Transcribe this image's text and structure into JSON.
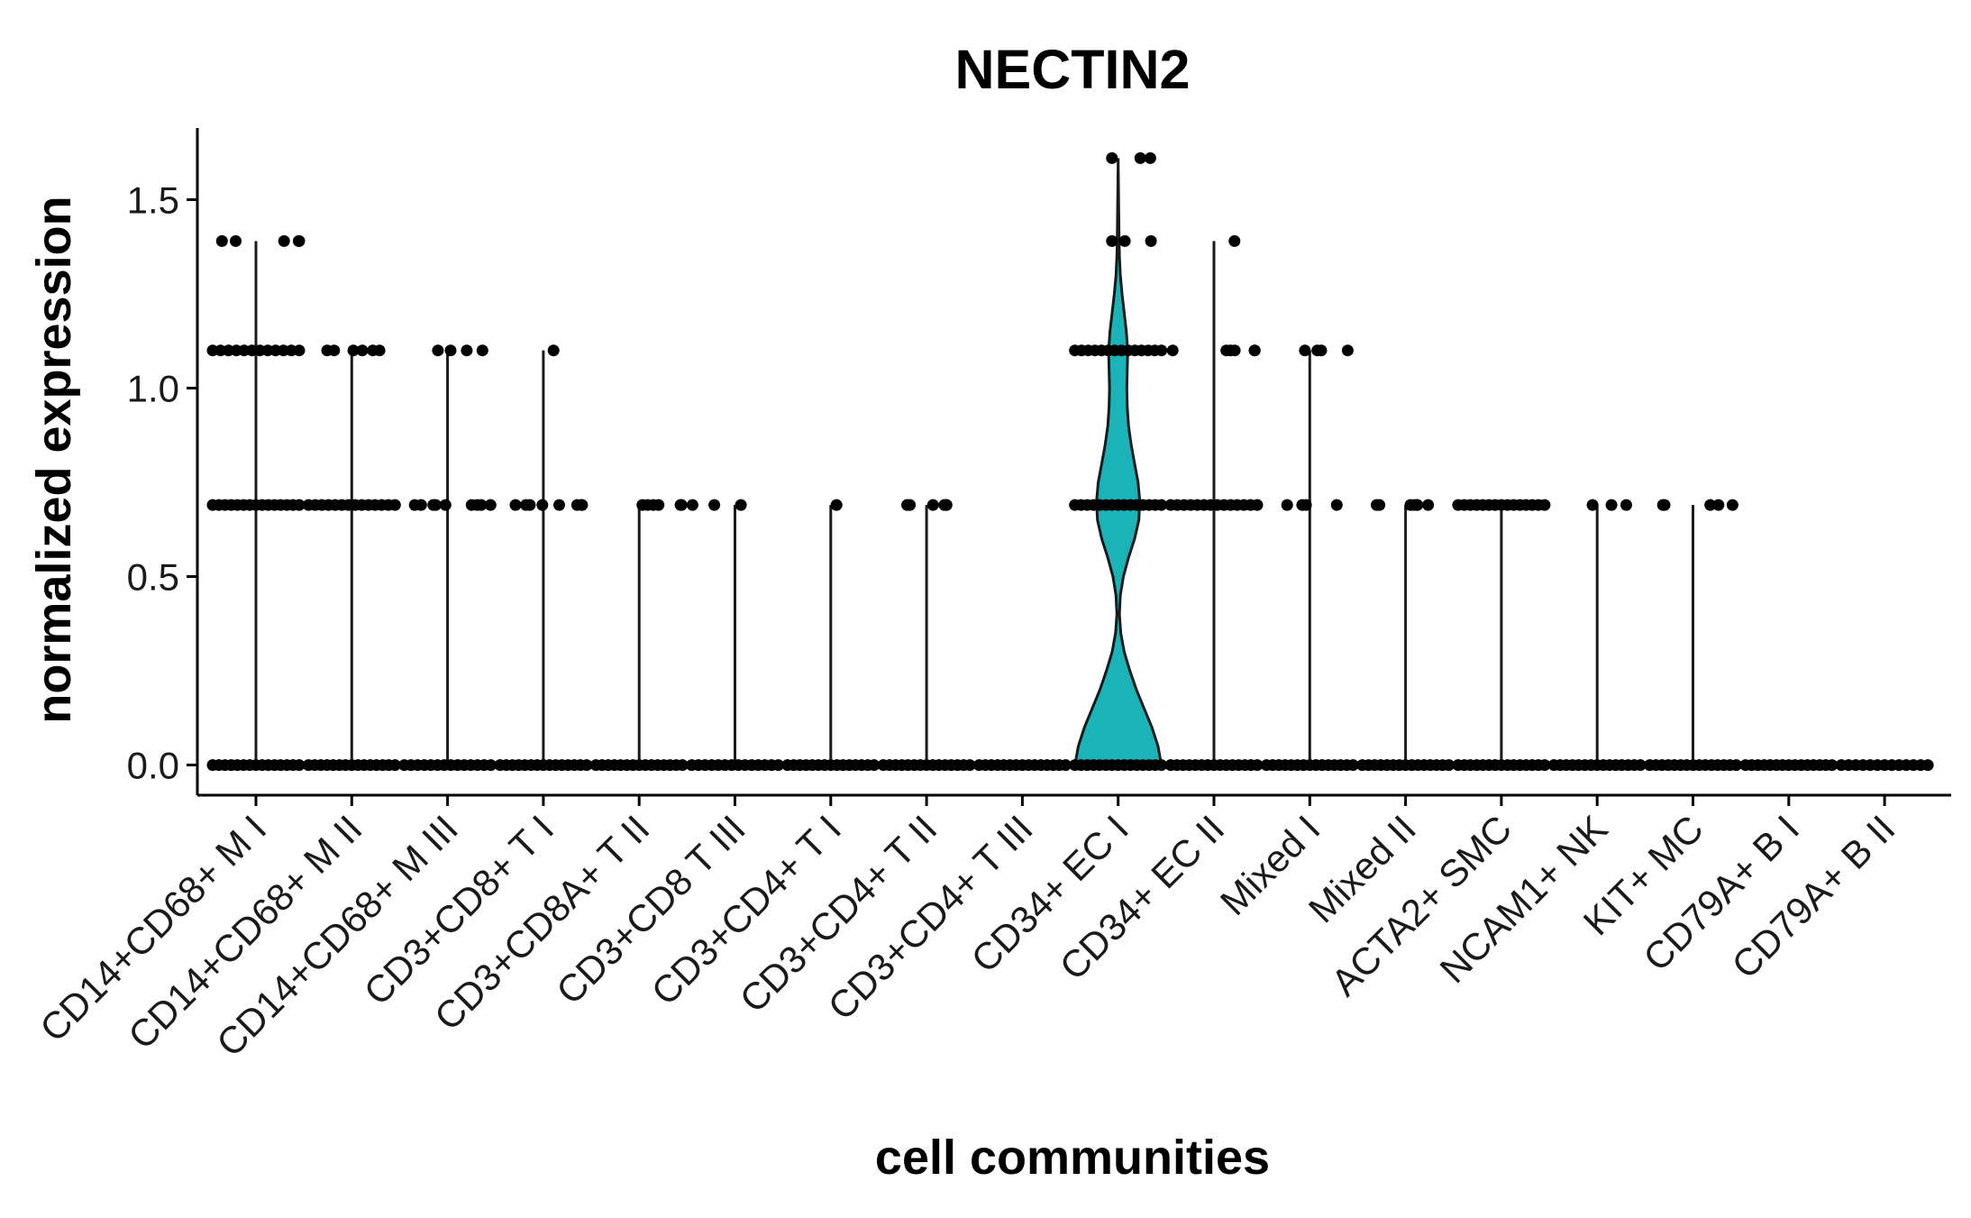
{
  "chart_data": {
    "type": "violin",
    "title": "NECTIN2",
    "xlabel": "cell communities",
    "ylabel": "normalized expression",
    "ylim": [
      -0.08,
      1.69
    ],
    "yticks": [
      "0.0",
      "0.5",
      "1.0",
      "1.5"
    ],
    "grid": false,
    "legend": "none",
    "fill_color": "#1ab4b8",
    "point_color": "#000000",
    "categories": [
      {
        "name": "CD14+CD68+ M I",
        "max": 1.39,
        "filled": false,
        "points": [
          [
            0,
            15
          ],
          [
            0.69,
            15
          ],
          [
            1.1,
            12
          ],
          [
            1.39,
            5
          ]
        ]
      },
      {
        "name": "CD14+CD68+ M II",
        "max": 1.1,
        "filled": false,
        "points": [
          [
            0,
            15
          ],
          [
            0.69,
            14
          ],
          [
            1.1,
            6
          ]
        ]
      },
      {
        "name": "CD14+CD68+ M III",
        "max": 1.1,
        "filled": false,
        "points": [
          [
            0,
            14
          ],
          [
            0.69,
            9
          ],
          [
            1.1,
            4
          ]
        ]
      },
      {
        "name": "CD3+CD8+ T I",
        "max": 1.1,
        "filled": false,
        "points": [
          [
            0,
            15
          ],
          [
            0.69,
            8
          ],
          [
            1.1,
            1
          ]
        ]
      },
      {
        "name": "CD3+CD8A+ T II",
        "max": 0.69,
        "filled": false,
        "points": [
          [
            0,
            15
          ],
          [
            0.69,
            6
          ]
        ]
      },
      {
        "name": "CD3+CD8 T III",
        "max": 0.69,
        "filled": false,
        "points": [
          [
            0,
            14
          ],
          [
            0.69,
            3
          ]
        ]
      },
      {
        "name": "CD3+CD4+ T I",
        "max": 0.69,
        "filled": false,
        "points": [
          [
            0,
            15
          ],
          [
            0.69,
            1
          ]
        ]
      },
      {
        "name": "CD3+CD4+ T II",
        "max": 0.69,
        "filled": false,
        "points": [
          [
            0,
            15
          ],
          [
            0.69,
            6
          ]
        ]
      },
      {
        "name": "CD3+CD4+ T III",
        "max": 0,
        "filled": false,
        "points": [
          [
            0,
            15
          ]
        ]
      },
      {
        "name": "CD34+ EC I",
        "max": 1.61,
        "filled": true,
        "points": [
          [
            0,
            15
          ],
          [
            0.69,
            15
          ],
          [
            1.1,
            14
          ],
          [
            1.39,
            3
          ],
          [
            1.61,
            3
          ]
        ],
        "density": [
          [
            0.0,
            1.0
          ],
          [
            0.05,
            0.92
          ],
          [
            0.1,
            0.78
          ],
          [
            0.15,
            0.6
          ],
          [
            0.2,
            0.42
          ],
          [
            0.25,
            0.27
          ],
          [
            0.3,
            0.14
          ],
          [
            0.35,
            0.06
          ],
          [
            0.4,
            0.03
          ],
          [
            0.45,
            0.05
          ],
          [
            0.5,
            0.12
          ],
          [
            0.55,
            0.24
          ],
          [
            0.6,
            0.38
          ],
          [
            0.65,
            0.48
          ],
          [
            0.7,
            0.5
          ],
          [
            0.75,
            0.46
          ],
          [
            0.8,
            0.38
          ],
          [
            0.85,
            0.3
          ],
          [
            0.9,
            0.24
          ],
          [
            0.95,
            0.21
          ],
          [
            1.0,
            0.2
          ],
          [
            1.05,
            0.21
          ],
          [
            1.1,
            0.22
          ],
          [
            1.15,
            0.19
          ],
          [
            1.2,
            0.14
          ],
          [
            1.25,
            0.09
          ],
          [
            1.3,
            0.05
          ],
          [
            1.35,
            0.03
          ],
          [
            1.4,
            0.02
          ],
          [
            1.5,
            0.01
          ],
          [
            1.61,
            0.0
          ]
        ]
      },
      {
        "name": "CD34+ EC II",
        "max": 1.39,
        "filled": false,
        "points": [
          [
            0,
            15
          ],
          [
            0.69,
            14
          ],
          [
            1.1,
            6
          ],
          [
            1.39,
            1
          ]
        ]
      },
      {
        "name": "Mixed I",
        "max": 1.1,
        "filled": false,
        "points": [
          [
            0,
            15
          ],
          [
            0.69,
            4
          ],
          [
            1.1,
            4
          ]
        ]
      },
      {
        "name": "Mixed II",
        "max": 0.69,
        "filled": false,
        "points": [
          [
            0,
            15
          ],
          [
            0.69,
            7
          ]
        ]
      },
      {
        "name": "ACTA2+ SMC",
        "max": 0.69,
        "filled": false,
        "points": [
          [
            0,
            15
          ],
          [
            0.69,
            15
          ]
        ]
      },
      {
        "name": "NCAM1+ NK",
        "max": 0.69,
        "filled": false,
        "points": [
          [
            0,
            15
          ],
          [
            0.69,
            3
          ]
        ]
      },
      {
        "name": "KIT+ MC",
        "max": 0.69,
        "filled": false,
        "points": [
          [
            0,
            15
          ],
          [
            0.69,
            5
          ]
        ]
      },
      {
        "name": "CD79A+ B I",
        "max": 0,
        "filled": false,
        "points": [
          [
            0,
            15
          ]
        ]
      },
      {
        "name": "CD79A+ B II",
        "max": 0,
        "filled": false,
        "points": [
          [
            0,
            13
          ]
        ]
      }
    ]
  }
}
